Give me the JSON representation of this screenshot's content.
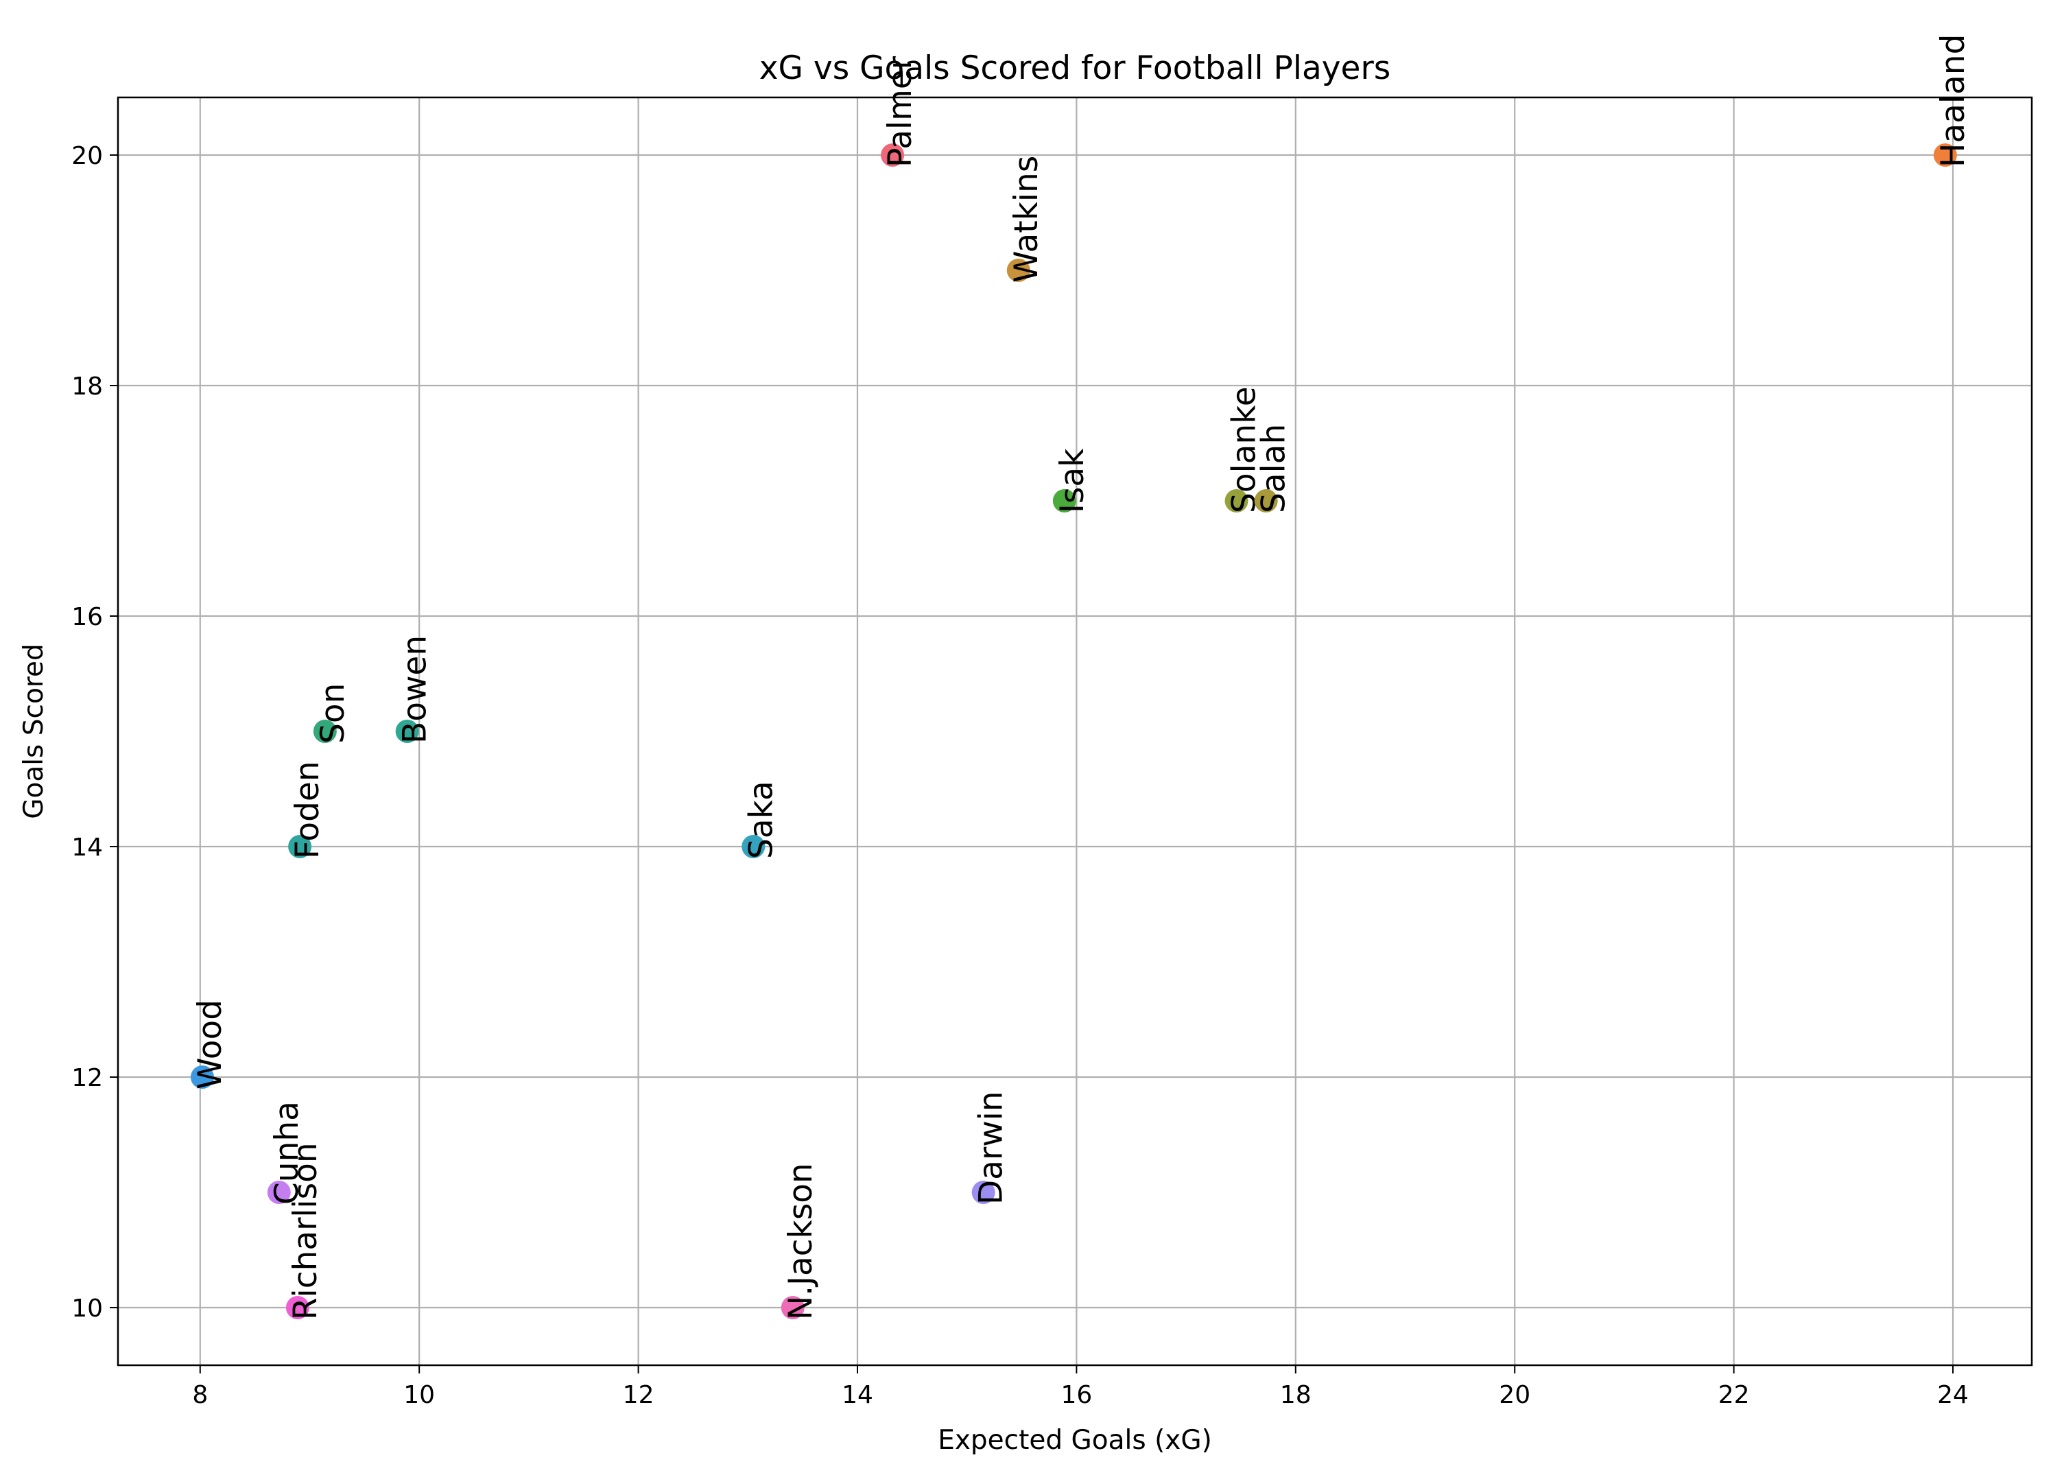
{
  "chart_data": {
    "type": "scatter",
    "title": "xG vs Goals Scored for Football Players",
    "xlabel": "Expected Goals (xG)",
    "ylabel": "Goals Scored",
    "xlim": [
      7.25,
      24.72
    ],
    "ylim": [
      9.5,
      20.5
    ],
    "xticks": [
      8,
      10,
      12,
      14,
      16,
      18,
      20,
      22,
      24
    ],
    "yticks": [
      10,
      12,
      14,
      16,
      18,
      20
    ],
    "grid": true,
    "points": [
      {
        "label": "Palmer",
        "x": 14.32,
        "y": 20,
        "color": "#f0677a"
      },
      {
        "label": "Haaland",
        "x": 23.93,
        "y": 20,
        "color": "#f07f3a"
      },
      {
        "label": "Watkins",
        "x": 15.47,
        "y": 19,
        "color": "#c8923a"
      },
      {
        "label": "Solanke",
        "x": 17.46,
        "y": 17,
        "color": "#96a13c"
      },
      {
        "label": "Salah",
        "x": 17.73,
        "y": 17,
        "color": "#a89a3a"
      },
      {
        "label": "Isak",
        "x": 15.89,
        "y": 17,
        "color": "#4aab3c"
      },
      {
        "label": "Son",
        "x": 9.14,
        "y": 15,
        "color": "#33a87a"
      },
      {
        "label": "Bowen",
        "x": 9.89,
        "y": 15,
        "color": "#2fa893"
      },
      {
        "label": "Foden",
        "x": 8.91,
        "y": 14,
        "color": "#30a5a0"
      },
      {
        "label": "Saka",
        "x": 13.05,
        "y": 14,
        "color": "#35a3be"
      },
      {
        "label": "Wood",
        "x": 8.02,
        "y": 12,
        "color": "#3c98e0"
      },
      {
        "label": "Cunha",
        "x": 8.72,
        "y": 11,
        "color": "#c57ef0"
      },
      {
        "label": "Darwin",
        "x": 15.15,
        "y": 11,
        "color": "#9b8ef0"
      },
      {
        "label": "Richarlison",
        "x": 8.89,
        "y": 10,
        "color": "#ee5fd3"
      },
      {
        "label": "N.Jackson",
        "x": 13.41,
        "y": 10,
        "color": "#ee6bb8"
      }
    ]
  }
}
